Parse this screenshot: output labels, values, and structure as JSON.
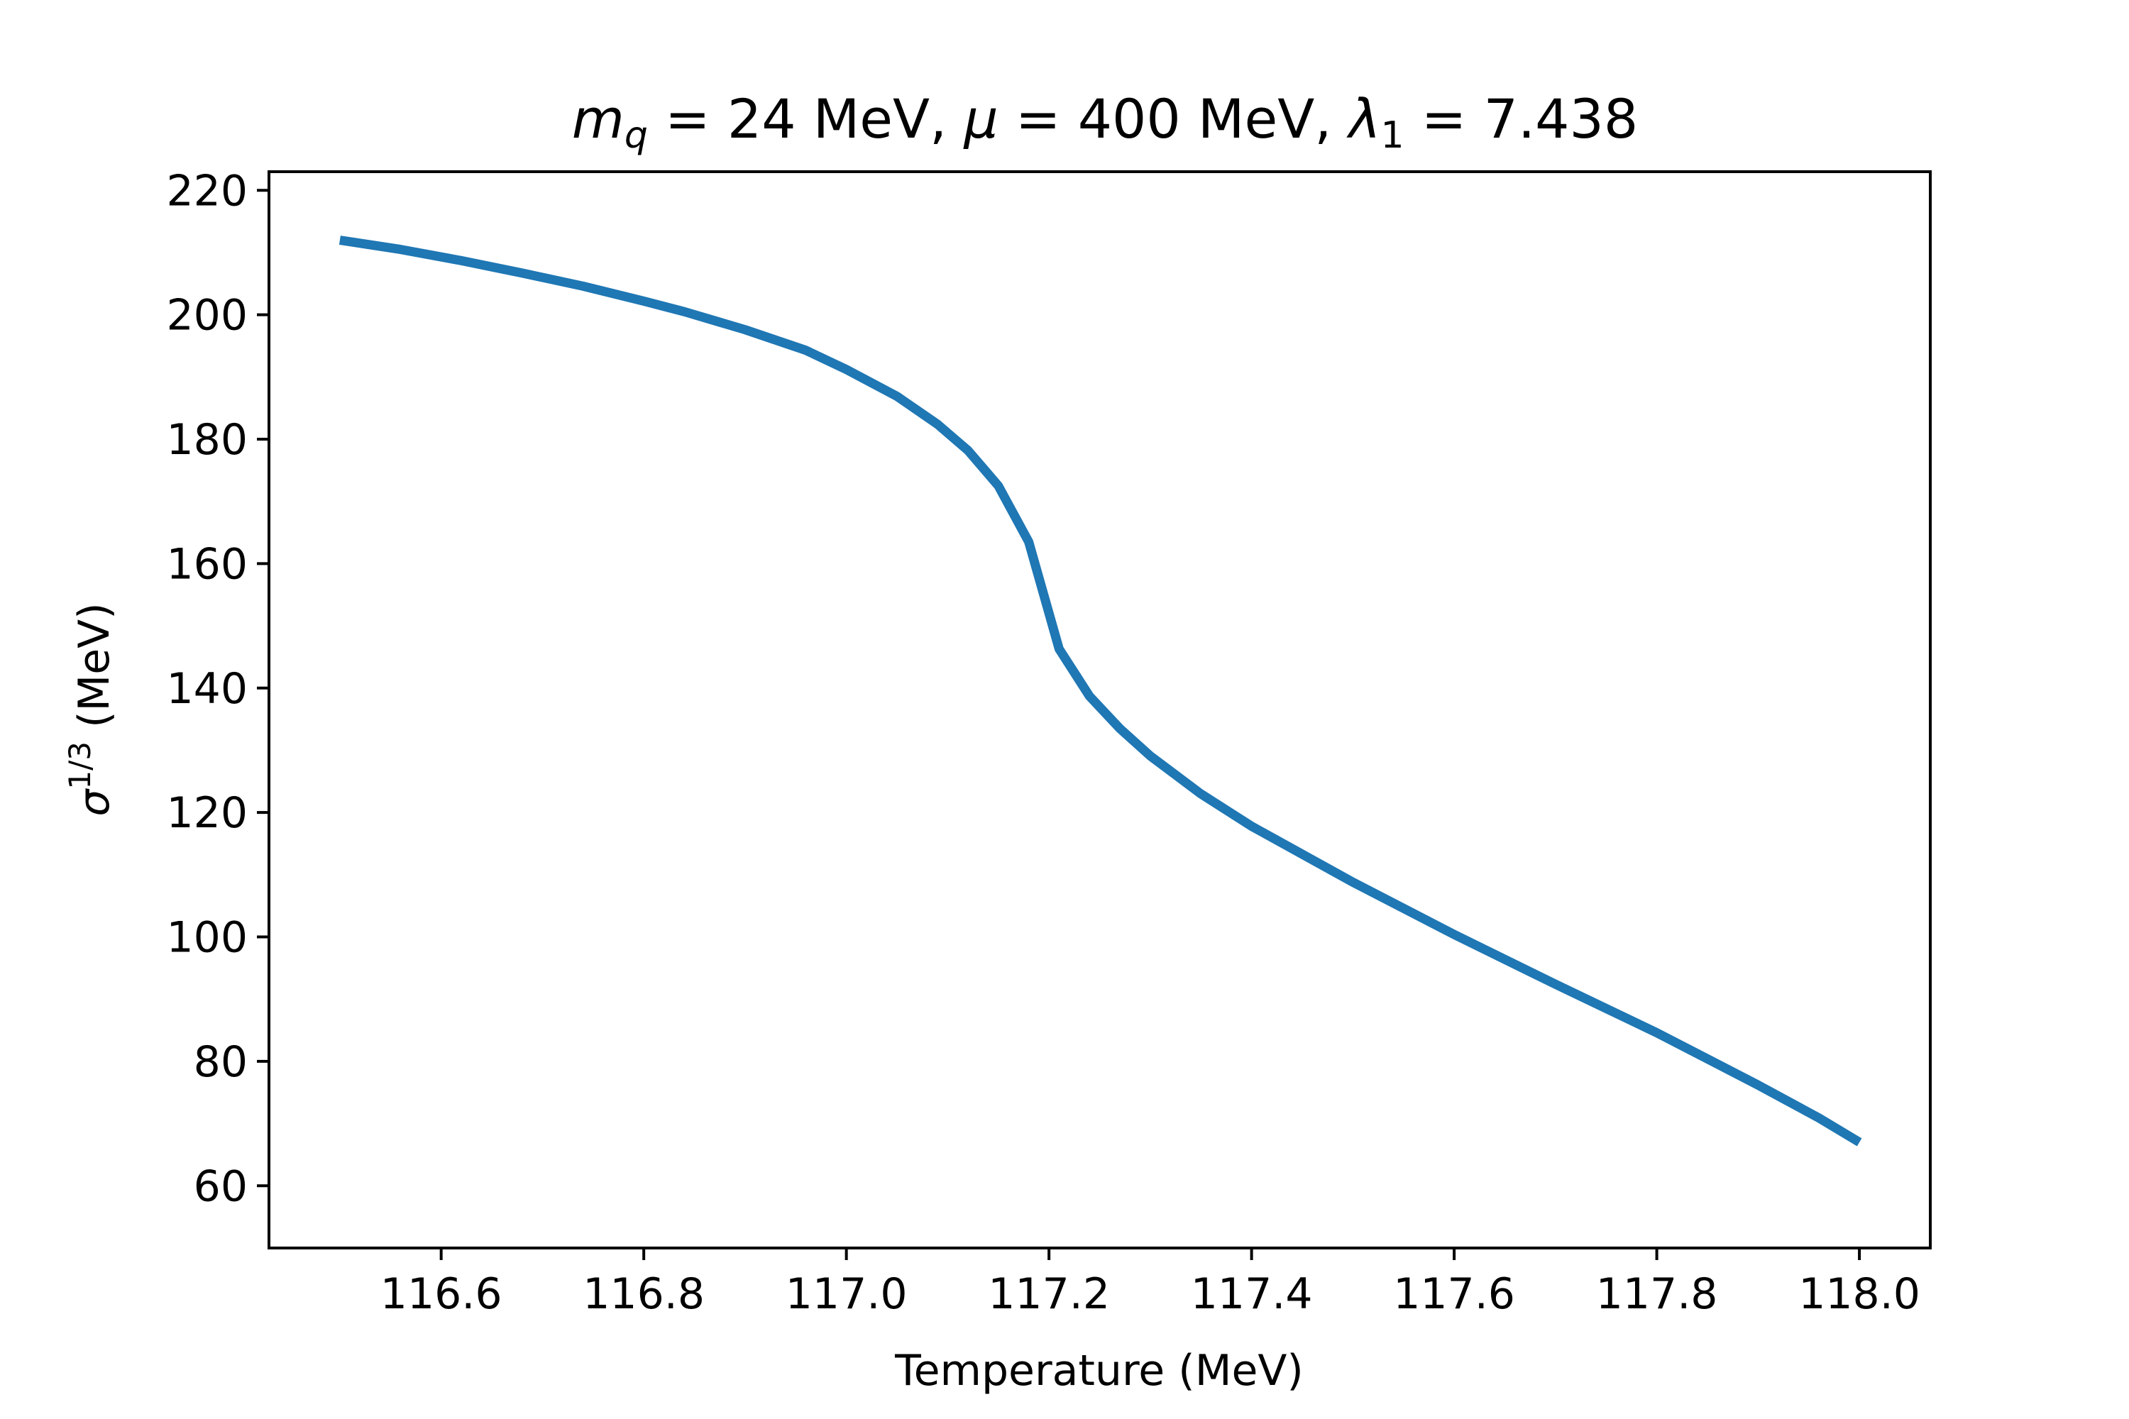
{
  "chart_data": {
    "type": "line",
    "title": {
      "m_symbol": "m",
      "m_sub": "q",
      "m_value": " = 24 MeV, ",
      "mu_symbol": "μ",
      "mu_value": " = 400 MeV, ",
      "lambda_symbol": "λ",
      "lambda_sub": "1",
      "lambda_value": " = 7.438"
    },
    "xlabel": "Temperature (MeV)",
    "ylabel": {
      "symbol": "σ",
      "superscript": "1/3",
      "unit": " (MeV)"
    },
    "xlim": [
      116.43,
      118.07
    ],
    "ylim": [
      50,
      223
    ],
    "xticks": [
      116.6,
      116.8,
      117.0,
      117.2,
      117.4,
      117.6,
      117.8,
      118.0
    ],
    "xtick_labels": [
      "116.6",
      "116.8",
      "117.0",
      "117.2",
      "117.4",
      "117.6",
      "117.8",
      "118.0"
    ],
    "yticks": [
      60,
      80,
      100,
      120,
      140,
      160,
      180,
      200,
      220
    ],
    "ytick_labels": [
      "60",
      "80",
      "100",
      "120",
      "140",
      "160",
      "180",
      "200",
      "220"
    ],
    "grid": false,
    "line_color": "#1f77b4",
    "series": [
      {
        "x": [
          116.5,
          116.56,
          116.62,
          116.68,
          116.74,
          116.8,
          116.84,
          116.9,
          116.96,
          117.0,
          117.05,
          117.09,
          117.12,
          117.15,
          117.18,
          117.21,
          117.24,
          117.27,
          117.3,
          117.35,
          117.4,
          117.5,
          117.6,
          117.7,
          117.8,
          117.9,
          117.96,
          118.0
        ],
        "y": [
          212,
          210.5,
          208.7,
          206.7,
          204.6,
          202.2,
          200.5,
          197.6,
          194.3,
          191.2,
          186.9,
          182.4,
          178.2,
          172.5,
          163.5,
          146.3,
          138.7,
          133.5,
          129.1,
          123.0,
          117.8,
          108.8,
          100.4,
          92.4,
          84.6,
          76.2,
          70.9,
          67.0
        ]
      }
    ]
  }
}
